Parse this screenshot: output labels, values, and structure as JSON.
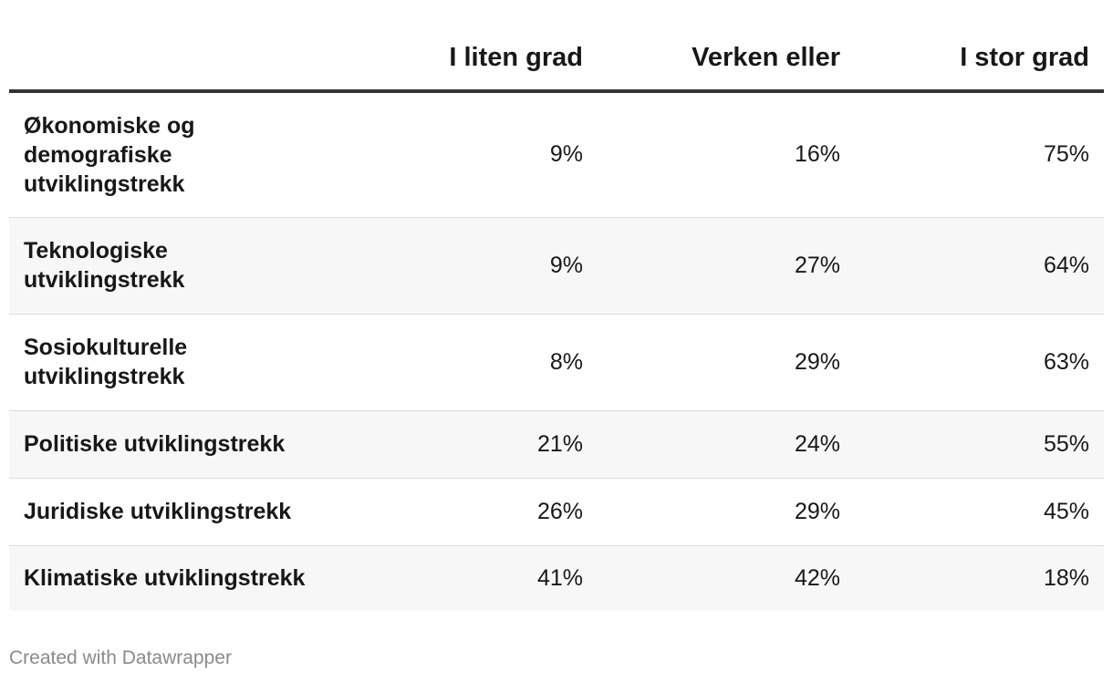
{
  "chart_data": {
    "type": "table",
    "columns": [
      "",
      "I liten grad",
      "Verken eller",
      "I stor grad"
    ],
    "rows": [
      {
        "label": "Økonomiske og demografiske utviklingstrekk",
        "values": [
          "9%",
          "16%",
          "75%"
        ]
      },
      {
        "label": "Teknologiske utviklingstrekk",
        "values": [
          "9%",
          "27%",
          "64%"
        ]
      },
      {
        "label": "Sosiokulturelle utviklingstrekk",
        "values": [
          "8%",
          "29%",
          "63%"
        ]
      },
      {
        "label": "Politiske utviklingstrekk",
        "values": [
          "21%",
          "24%",
          "55%"
        ]
      },
      {
        "label": "Juridiske utviklingstrekk",
        "values": [
          "26%",
          "29%",
          "45%"
        ]
      },
      {
        "label": "Klimatiske utviklingstrekk",
        "values": [
          "41%",
          "42%",
          "18%"
        ]
      }
    ]
  },
  "footer": {
    "credit": "Created with Datawrapper"
  }
}
